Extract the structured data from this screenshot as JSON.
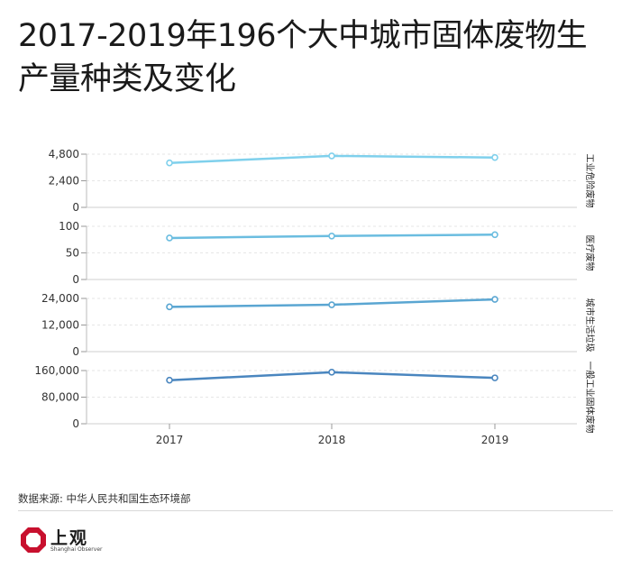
{
  "title": "2017-2019年196个大中城市固体废物生产量种类及变化",
  "source": "数据来源: 中华人民共和国生态环境部",
  "logo": {
    "name": "上观",
    "subtitle": "Shanghai Observer"
  },
  "chart_data": {
    "type": "line",
    "categories": [
      "2017",
      "2018",
      "2019"
    ],
    "grid": true,
    "panels": [
      {
        "name": "工业危险废物",
        "values": [
          4010,
          4643,
          4498
        ],
        "ylim": [
          0,
          4800
        ],
        "yticks": [
          "0",
          "2,400",
          "4,800"
        ],
        "color": "#7fd0ec"
      },
      {
        "name": "医疗废物",
        "values": [
          78,
          81.7,
          84.3
        ],
        "ylim": [
          0,
          100
        ],
        "yticks": [
          "0",
          "50",
          "100"
        ],
        "color": "#6bbde0"
      },
      {
        "name": "城市生活垃圾",
        "values": [
          20194,
          21147,
          23560
        ],
        "ylim": [
          0,
          24000
        ],
        "yticks": [
          "0",
          "12,000",
          "24,000"
        ],
        "color": "#5aa6d2"
      },
      {
        "name": "一般工业固体废物",
        "values": [
          131000,
          155000,
          138000
        ],
        "ylim": [
          0,
          160000
        ],
        "yticks": [
          "0",
          "80,000",
          "160,000"
        ],
        "color": "#4a86bf"
      }
    ]
  }
}
